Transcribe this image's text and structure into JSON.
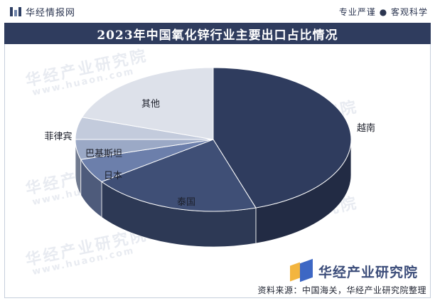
{
  "header": {
    "brand": "华经情报网",
    "slogan": "专业严谨 ● 客观科学"
  },
  "watermark": {
    "text": "华经产业研究院",
    "url": "www.huaon.com"
  },
  "chart_data": {
    "type": "pie",
    "title": "2023年中国氧化锌行业主要出口占比情况",
    "slices": [
      {
        "label": "越南",
        "value": 45,
        "color": "#2f3c5e"
      },
      {
        "label": "泰国",
        "value": 20,
        "color": "#3f4f76"
      },
      {
        "label": "日本",
        "value": 5.5,
        "color": "#6c7fab"
      },
      {
        "label": "巴基斯坦",
        "value": 4.5,
        "color": "#9ba9c6"
      },
      {
        "label": "菲律宾",
        "value": 5,
        "color": "#c3cbdc"
      },
      {
        "label": "其他",
        "value": 20,
        "color": "#dde1ea"
      }
    ]
  },
  "footer": {
    "logo_text": "华经产业研究院",
    "source": "资料来源：中国海关，华经产业研究院整理"
  }
}
